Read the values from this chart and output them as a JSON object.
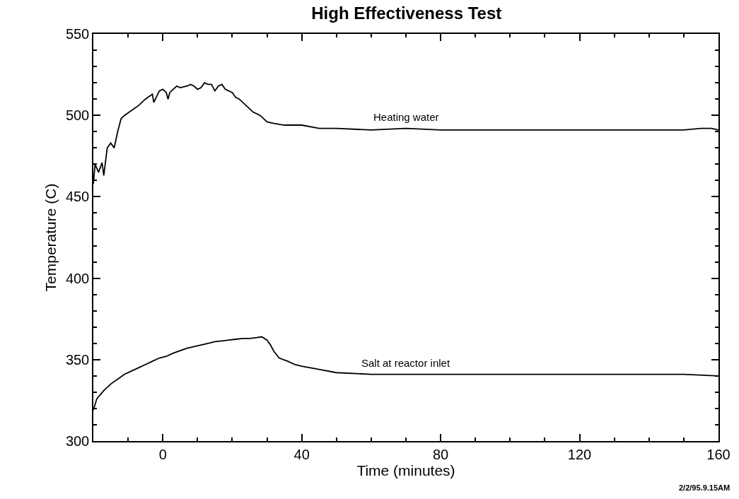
{
  "chart_data": {
    "type": "line",
    "title": "High Effectiveness Test",
    "xlabel": "Time (minutes)",
    "ylabel": "Temperature (C)",
    "xlim": [
      -20,
      160
    ],
    "xticks": [
      0,
      40,
      80,
      120,
      160
    ],
    "ylim": [
      300,
      550
    ],
    "yticks": [
      300,
      350,
      400,
      450,
      500,
      550
    ],
    "legend": false,
    "marker": "none",
    "line_style": "solid",
    "series": [
      {
        "name": "Heating water",
        "color": "#000000",
        "x": [
          -20,
          -19.5,
          -18.5,
          -17.5,
          -17,
          -16,
          -15,
          -14,
          -13,
          -12,
          -11,
          -9,
          -7,
          -5,
          -3,
          -2.6,
          -1,
          0,
          1,
          1.5,
          2,
          3,
          4,
          5,
          7,
          8,
          9,
          10,
          11,
          12,
          13,
          14,
          15,
          16,
          17,
          18,
          20,
          21,
          22,
          24,
          26,
          28,
          30,
          32,
          35,
          40,
          45,
          50,
          60,
          70,
          80,
          90,
          100,
          110,
          120,
          130,
          140,
          150,
          155,
          158,
          160
        ],
        "values": [
          458,
          470,
          465,
          471,
          463,
          480,
          483,
          480,
          490,
          498,
          500,
          503,
          506,
          510,
          513,
          508,
          515,
          516,
          514,
          510,
          514,
          516,
          518,
          517,
          518,
          519,
          518,
          516,
          517,
          520,
          519,
          519,
          515,
          518,
          519,
          516,
          514,
          511,
          510,
          506,
          502,
          500,
          496,
          495,
          494,
          494,
          492,
          492,
          491,
          492,
          491,
          491,
          491,
          491,
          491,
          491,
          491,
          491,
          492,
          492,
          491
        ]
      },
      {
        "name": "Salt at reactor inlet",
        "color": "#000000",
        "x": [
          -20,
          -19,
          -17,
          -15,
          -13,
          -11,
          -9,
          -7,
          -5,
          -3,
          -1,
          1,
          3,
          5,
          7,
          9,
          11,
          13,
          15,
          17,
          19,
          21,
          23,
          25,
          27,
          28.5,
          30,
          31,
          32,
          33.5,
          36,
          38,
          40,
          45,
          50,
          60,
          70,
          80,
          90,
          100,
          110,
          120,
          130,
          140,
          150,
          160
        ],
        "values": [
          319,
          326,
          331,
          335,
          338,
          341,
          343,
          345,
          347,
          349,
          351,
          352,
          354,
          355.5,
          357,
          358,
          359,
          360,
          361,
          361.5,
          362,
          362.5,
          363,
          363,
          363.5,
          364,
          362,
          359,
          355,
          351,
          349,
          347,
          346,
          344,
          342,
          341,
          341,
          341,
          341,
          341,
          341,
          341,
          341,
          341,
          341,
          340
        ]
      }
    ],
    "annotations": [
      "2/2/95.9.15AM"
    ]
  }
}
